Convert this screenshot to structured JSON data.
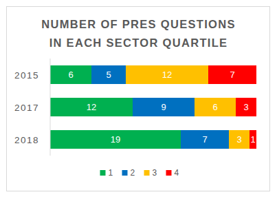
{
  "chart_data": {
    "type": "bar",
    "orientation": "horizontal",
    "stacked": true,
    "title": "NUMBER OF PRES QUESTIONS\nIN EACH SECTOR QUARTILE",
    "categories": [
      "2015",
      "2017",
      "2018"
    ],
    "series": [
      {
        "name": "1",
        "color": "#00b050",
        "values": [
          6,
          12,
          19
        ]
      },
      {
        "name": "2",
        "color": "#0070c0",
        "values": [
          5,
          9,
          7
        ]
      },
      {
        "name": "3",
        "color": "#ffc000",
        "values": [
          12,
          6,
          3
        ]
      },
      {
        "name": "4",
        "color": "#ff0000",
        "values": [
          7,
          3,
          1
        ]
      }
    ],
    "xlim": [
      0,
      30
    ],
    "tick_labels": false,
    "grid": false,
    "data_labels": true,
    "legend": "bottom"
  }
}
